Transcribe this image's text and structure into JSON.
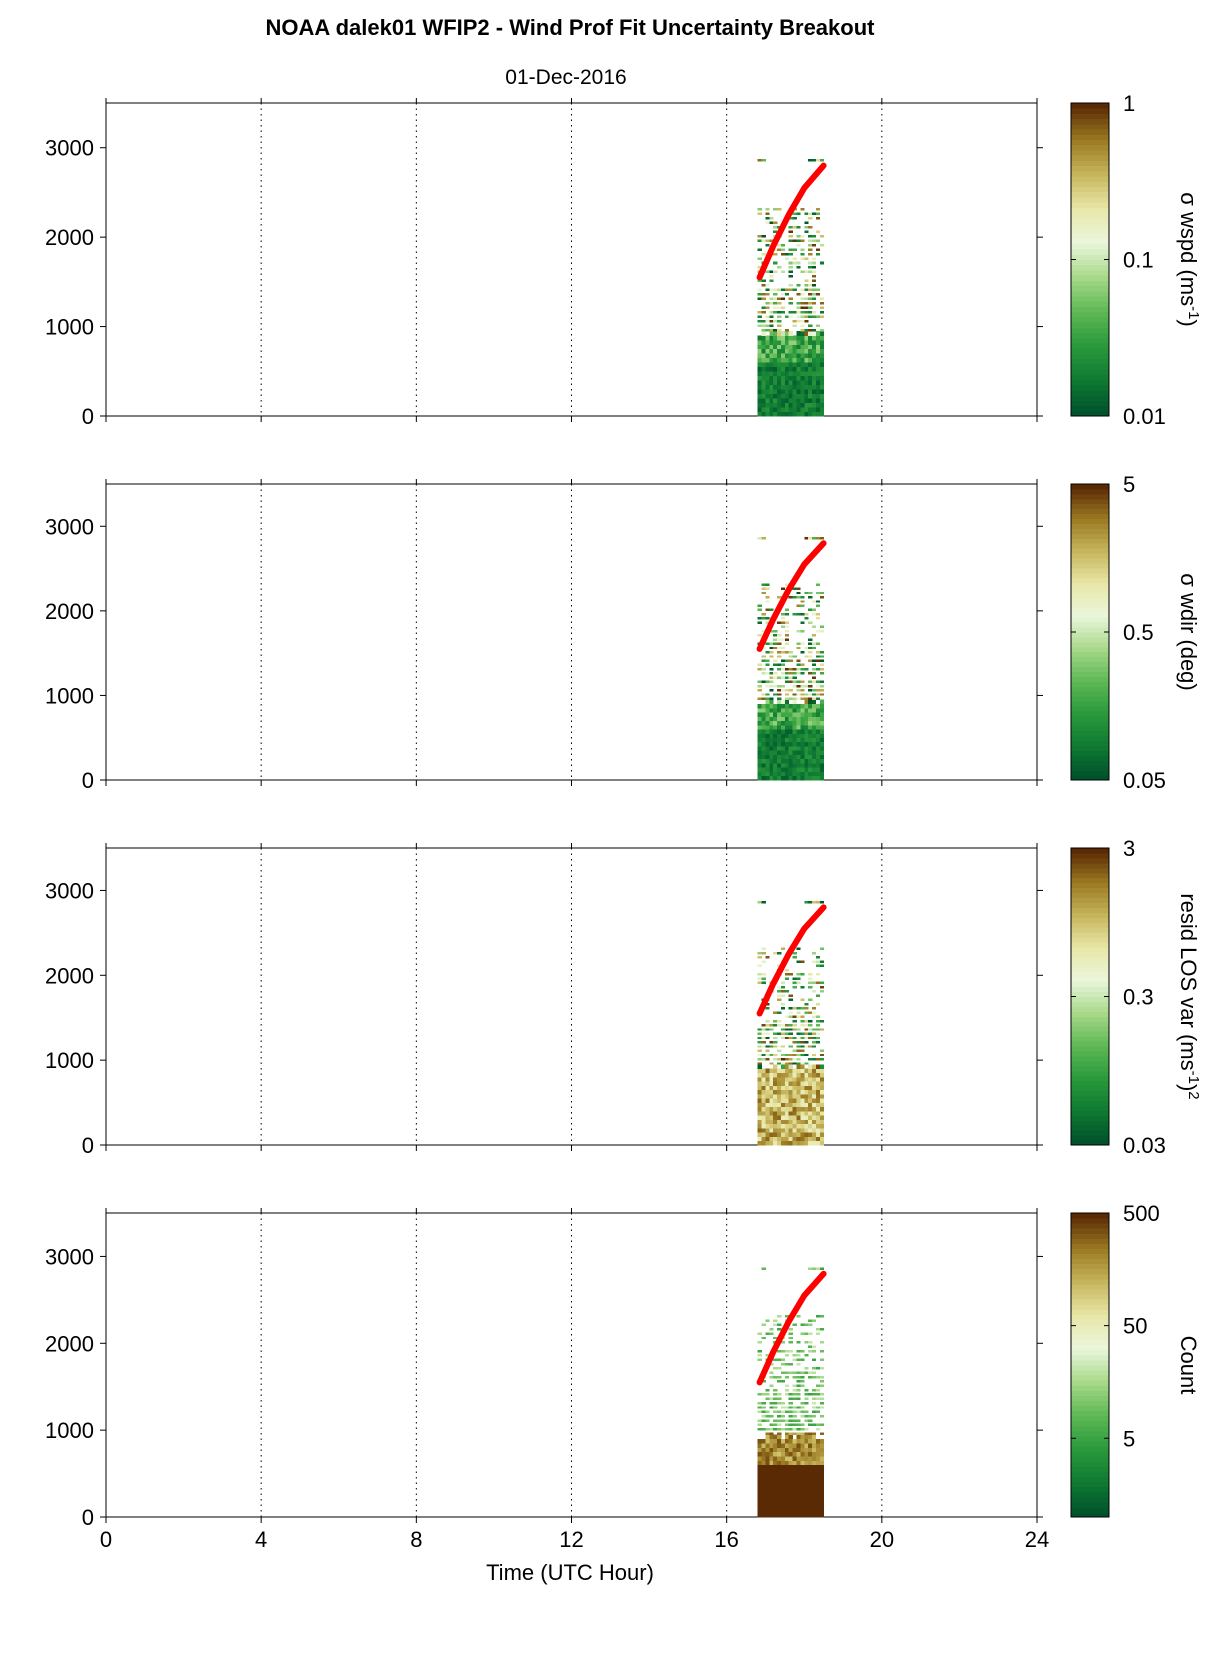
{
  "title": "NOAA dalek01 WFIP2 - Wind Prof Fit Uncertainty Breakout",
  "subtitle": "01-Dec-2016",
  "colors": {
    "colormap": [
      "#00522b",
      "#0f7a33",
      "#2a9a3c",
      "#5fb855",
      "#a8d98a",
      "#eaf6dc",
      "#e9e7a8",
      "#c6b55c",
      "#9a7a22",
      "#5a2a04"
    ],
    "trend_line": "#ff0000",
    "axis": "#000000",
    "grid": "#000000"
  },
  "chart_data": [
    {
      "type": "heatmap",
      "panel": 1,
      "colorbar_label": "σ wspd (ms",
      "colorbar_label_sup": "-1",
      "colorbar_label_tail": ")",
      "colorbar_ticks": [
        "1",
        "0.1",
        "0.01"
      ],
      "colorbar_scale": "log",
      "colorbar_range": [
        0.01,
        1
      ],
      "xlim": [
        0,
        24
      ],
      "ylim": [
        0,
        3500
      ],
      "xticks": [
        0,
        4,
        8,
        12,
        16,
        20,
        24
      ],
      "yticks": [
        "0",
        "1000",
        "2000",
        "3000"
      ],
      "grid": "vertical dotted",
      "profile": "wspd",
      "data_time_range": [
        16.8,
        18.5
      ],
      "data_height_range": [
        0,
        2850
      ],
      "trend_line": {
        "x": [
          16.85,
          17.2,
          17.6,
          18.0,
          18.5
        ],
        "y": [
          1550,
          1900,
          2250,
          2550,
          2800
        ]
      }
    },
    {
      "type": "heatmap",
      "panel": 2,
      "colorbar_label": "σ wdir (deg)",
      "colorbar_ticks": [
        "5",
        "0.5",
        "0.05"
      ],
      "colorbar_scale": "log",
      "colorbar_range": [
        0.05,
        5
      ],
      "xlim": [
        0,
        24
      ],
      "ylim": [
        0,
        3500
      ],
      "xticks": [
        0,
        4,
        8,
        12,
        16,
        20,
        24
      ],
      "yticks": [
        "0",
        "1000",
        "2000",
        "3000"
      ],
      "grid": "vertical dotted",
      "profile": "wdir",
      "data_time_range": [
        16.8,
        18.5
      ],
      "data_height_range": [
        0,
        2850
      ],
      "trend_line": {
        "x": [
          16.85,
          17.2,
          17.6,
          18.0,
          18.5
        ],
        "y": [
          1550,
          1900,
          2250,
          2550,
          2800
        ]
      }
    },
    {
      "type": "heatmap",
      "panel": 3,
      "colorbar_label": "resid LOS var (ms",
      "colorbar_label_sup": "-1",
      "colorbar_label_tail": ")",
      "colorbar_label_sup2": "2",
      "colorbar_ticks": [
        "3",
        "0.3",
        "0.03"
      ],
      "colorbar_scale": "log",
      "colorbar_range": [
        0.03,
        3
      ],
      "xlim": [
        0,
        24
      ],
      "ylim": [
        0,
        3500
      ],
      "xticks": [
        0,
        4,
        8,
        12,
        16,
        20,
        24
      ],
      "yticks": [
        "0",
        "1000",
        "2000",
        "3000"
      ],
      "grid": "vertical dotted",
      "profile": "resid",
      "data_time_range": [
        16.8,
        18.5
      ],
      "data_height_range": [
        0,
        2850
      ],
      "trend_line": {
        "x": [
          16.85,
          17.2,
          17.6,
          18.0,
          18.5
        ],
        "y": [
          1550,
          1900,
          2250,
          2550,
          2800
        ]
      }
    },
    {
      "type": "heatmap",
      "panel": 4,
      "colorbar_label": "Count",
      "colorbar_ticks": [
        "500",
        "50",
        "5"
      ],
      "colorbar_scale": "log",
      "colorbar_range": [
        1,
        500
      ],
      "xlim": [
        0,
        24
      ],
      "ylim": [
        0,
        3500
      ],
      "xticks": [
        0,
        4,
        8,
        12,
        16,
        20,
        24
      ],
      "yticks": [
        "0",
        "1000",
        "2000",
        "3000"
      ],
      "grid": "vertical dotted",
      "profile": "count",
      "data_time_range": [
        16.8,
        18.5
      ],
      "data_height_range": [
        0,
        2850
      ],
      "trend_line": {
        "x": [
          16.85,
          17.2,
          17.6,
          18.0,
          18.5
        ],
        "y": [
          1550,
          1900,
          2250,
          2550,
          2800
        ]
      }
    }
  ],
  "xaxis": {
    "label": "Time (UTC Hour)",
    "ticks": [
      "0",
      "4",
      "8",
      "12",
      "16",
      "20",
      "24"
    ]
  }
}
